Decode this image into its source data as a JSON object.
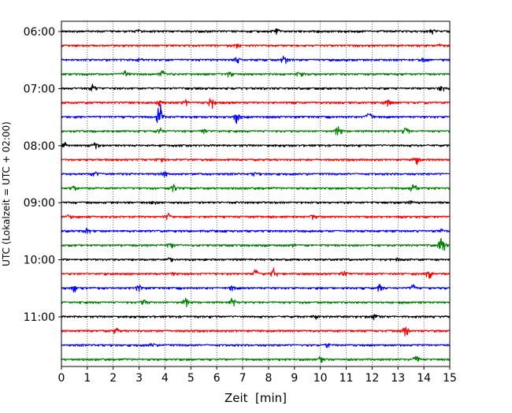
{
  "chart_data": {
    "type": "line",
    "title": "",
    "xlabel": "Zeit  [min]",
    "ylabel": "UTC (Lokalzeit = UTC + 02:00)",
    "xlim": [
      0,
      15
    ],
    "x_ticks": [
      "0",
      "1",
      "2",
      "3",
      "4",
      "5",
      "6",
      "7",
      "8",
      "9",
      "10",
      "11",
      "12",
      "13",
      "14",
      "15"
    ],
    "y_tick_labels": [
      "06:00",
      "07:00",
      "08:00",
      "09:00",
      "10:00",
      "11:00"
    ],
    "grid": "vertical dotted lines at each minute",
    "trace_interval_min": 15,
    "trace_color_cycle": [
      "#000000",
      "#ff0000",
      "#0000ff",
      "#008000"
    ],
    "traces": [
      {
        "start": "06:00",
        "bursts": [
          {
            "t": 3.0,
            "a": 2.5
          },
          {
            "t": 8.3,
            "a": 4
          },
          {
            "t": 14.3,
            "a": 3
          }
        ]
      },
      {
        "start": "06:15",
        "bursts": [
          {
            "t": 6.8,
            "a": 2
          },
          {
            "t": 14.6,
            "a": 2
          }
        ]
      },
      {
        "start": "06:30",
        "bursts": [
          {
            "t": 3.0,
            "a": 2
          },
          {
            "t": 6.8,
            "a": 3
          },
          {
            "t": 8.6,
            "a": 5
          },
          {
            "t": 14.0,
            "a": 2
          }
        ]
      },
      {
        "start": "06:45",
        "bursts": [
          {
            "t": 2.5,
            "a": 4
          },
          {
            "t": 3.9,
            "a": 4
          },
          {
            "t": 6.5,
            "a": 3
          },
          {
            "t": 9.2,
            "a": 3.5
          }
        ]
      },
      {
        "start": "07:00",
        "bursts": [
          {
            "t": 1.2,
            "a": 5
          },
          {
            "t": 14.7,
            "a": 4
          }
        ]
      },
      {
        "start": "07:15",
        "bursts": [
          {
            "t": 3.8,
            "a": 3
          },
          {
            "t": 4.8,
            "a": 3
          },
          {
            "t": 5.8,
            "a": 7
          },
          {
            "t": 12.6,
            "a": 6
          }
        ]
      },
      {
        "start": "07:30",
        "bursts": [
          {
            "t": 3.8,
            "a": 16
          },
          {
            "t": 6.8,
            "a": 9
          },
          {
            "t": 11.9,
            "a": 8
          }
        ]
      },
      {
        "start": "07:45",
        "bursts": [
          {
            "t": 3.8,
            "a": 4
          },
          {
            "t": 5.5,
            "a": 3
          },
          {
            "t": 10.7,
            "a": 7
          },
          {
            "t": 13.3,
            "a": 6
          }
        ]
      },
      {
        "start": "08:00",
        "bursts": [
          {
            "t": 0.1,
            "a": 3
          },
          {
            "t": 1.3,
            "a": 4
          }
        ]
      },
      {
        "start": "08:15",
        "bursts": [
          {
            "t": 3.8,
            "a": 4
          },
          {
            "t": 13.7,
            "a": 6
          }
        ]
      },
      {
        "start": "08:30",
        "bursts": [
          {
            "t": 1.3,
            "a": 3
          },
          {
            "t": 4.0,
            "a": 3
          },
          {
            "t": 7.5,
            "a": 2
          }
        ]
      },
      {
        "start": "08:45",
        "bursts": [
          {
            "t": 0.5,
            "a": 3
          },
          {
            "t": 4.3,
            "a": 4
          },
          {
            "t": 13.6,
            "a": 6
          }
        ]
      },
      {
        "start": "09:00",
        "bursts": [
          {
            "t": 3.6,
            "a": 2
          },
          {
            "t": 13.5,
            "a": 2
          }
        ]
      },
      {
        "start": "09:15",
        "bursts": [
          {
            "t": 0.3,
            "a": 3
          },
          {
            "t": 4.1,
            "a": 4
          },
          {
            "t": 9.7,
            "a": 2
          }
        ]
      },
      {
        "start": "09:30",
        "bursts": [
          {
            "t": 1.0,
            "a": 5
          },
          {
            "t": 14.7,
            "a": 2
          }
        ]
      },
      {
        "start": "09:45",
        "bursts": [
          {
            "t": 4.2,
            "a": 3
          },
          {
            "t": 9.0,
            "a": 2
          },
          {
            "t": 14.7,
            "a": 14
          }
        ]
      },
      {
        "start": "10:00",
        "bursts": [
          {
            "t": 4.2,
            "a": 2
          },
          {
            "t": 13.0,
            "a": 2
          }
        ]
      },
      {
        "start": "10:15",
        "bursts": [
          {
            "t": 4.3,
            "a": 2
          },
          {
            "t": 7.5,
            "a": 5
          },
          {
            "t": 8.2,
            "a": 7
          },
          {
            "t": 10.9,
            "a": 3
          },
          {
            "t": 14.2,
            "a": 6
          }
        ]
      },
      {
        "start": "10:30",
        "bursts": [
          {
            "t": 0.5,
            "a": 4
          },
          {
            "t": 3.0,
            "a": 4
          },
          {
            "t": 6.6,
            "a": 3
          },
          {
            "t": 12.3,
            "a": 4
          },
          {
            "t": 13.6,
            "a": 5
          }
        ]
      },
      {
        "start": "10:45",
        "bursts": [
          {
            "t": 3.2,
            "a": 4
          },
          {
            "t": 4.8,
            "a": 5
          },
          {
            "t": 6.6,
            "a": 5
          }
        ]
      },
      {
        "start": "11:00",
        "bursts": [
          {
            "t": 9.8,
            "a": 3
          },
          {
            "t": 12.1,
            "a": 3
          }
        ]
      },
      {
        "start": "11:15",
        "bursts": [
          {
            "t": 2.1,
            "a": 3
          },
          {
            "t": 13.3,
            "a": 6
          }
        ]
      },
      {
        "start": "11:30",
        "bursts": [
          {
            "t": 3.5,
            "a": 2
          },
          {
            "t": 10.3,
            "a": 2
          }
        ]
      },
      {
        "start": "11:45",
        "bursts": [
          {
            "t": 10.0,
            "a": 3
          },
          {
            "t": 13.7,
            "a": 6
          }
        ]
      }
    ]
  }
}
